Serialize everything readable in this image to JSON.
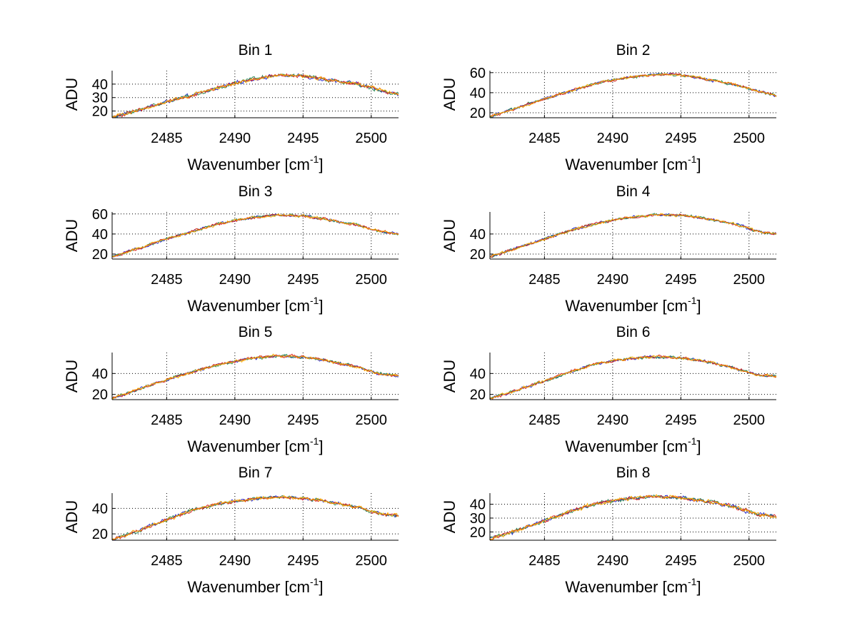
{
  "chart_data": [
    {
      "type": "line",
      "title": "Bin 1",
      "xlabel": "Wavenumber [cm",
      "xlabel_sup": "-1",
      "xlabel_close": "]",
      "ylabel": "ADU",
      "xlim": [
        2481,
        2502
      ],
      "ylim": [
        15,
        50
      ],
      "xticks": [
        2485,
        2490,
        2495,
        2500
      ],
      "yticks": [
        20,
        30,
        40
      ],
      "grid": true,
      "series_colors": [
        "#2b2fd0",
        "#2e8b57",
        "#d62728",
        "#f5a800"
      ],
      "profile": [
        [
          2481,
          15
        ],
        [
          2483,
          21
        ],
        [
          2485,
          27
        ],
        [
          2487,
          32
        ],
        [
          2489,
          38
        ],
        [
          2491,
          43
        ],
        [
          2493,
          46.5
        ],
        [
          2495,
          46
        ],
        [
          2497,
          43
        ],
        [
          2499,
          40
        ],
        [
          2500.5,
          36
        ],
        [
          2502,
          32
        ]
      ]
    },
    {
      "type": "line",
      "title": "Bin 2",
      "xlabel": "Wavenumber [cm",
      "xlabel_sup": "-1",
      "xlabel_close": "]",
      "ylabel": "ADU",
      "xlim": [
        2481,
        2502
      ],
      "ylim": [
        15,
        62
      ],
      "xticks": [
        2485,
        2490,
        2495,
        2500
      ],
      "yticks": [
        20,
        40,
        60
      ],
      "grid": true,
      "series_colors": [
        "#2b2fd0",
        "#2e8b57",
        "#d62728",
        "#f5a800"
      ],
      "profile": [
        [
          2481,
          16
        ],
        [
          2483,
          25
        ],
        [
          2485,
          34
        ],
        [
          2487,
          42
        ],
        [
          2489,
          50
        ],
        [
          2491,
          55
        ],
        [
          2493,
          58
        ],
        [
          2495,
          58
        ],
        [
          2497,
          53
        ],
        [
          2499,
          48
        ],
        [
          2500.5,
          42
        ],
        [
          2502,
          37
        ]
      ]
    },
    {
      "type": "line",
      "title": "Bin 3",
      "xlabel": "Wavenumber [cm",
      "xlabel_sup": "-1",
      "xlabel_close": "]",
      "ylabel": "ADU",
      "xlim": [
        2481,
        2502
      ],
      "ylim": [
        15,
        62
      ],
      "xticks": [
        2485,
        2490,
        2495,
        2500
      ],
      "yticks": [
        20,
        40,
        60
      ],
      "grid": true,
      "series_colors": [
        "#2b2fd0",
        "#2e8b57",
        "#d62728",
        "#f5a800"
      ],
      "profile": [
        [
          2481,
          17
        ],
        [
          2483,
          26
        ],
        [
          2485,
          35
        ],
        [
          2487,
          43
        ],
        [
          2489,
          51
        ],
        [
          2491,
          56
        ],
        [
          2493,
          59
        ],
        [
          2495,
          58
        ],
        [
          2497,
          54
        ],
        [
          2499,
          49
        ],
        [
          2500.5,
          43
        ],
        [
          2502,
          40
        ]
      ]
    },
    {
      "type": "line",
      "title": "Bin 4",
      "xlabel": "Wavenumber [cm",
      "xlabel_sup": "-1",
      "xlabel_close": "]",
      "ylabel": "ADU",
      "xlim": [
        2481,
        2502
      ],
      "ylim": [
        15,
        62
      ],
      "xticks": [
        2485,
        2490,
        2495,
        2500
      ],
      "yticks": [
        20,
        40
      ],
      "grid": true,
      "series_colors": [
        "#2b2fd0",
        "#2e8b57",
        "#d62728",
        "#f5a800"
      ],
      "profile": [
        [
          2481,
          17
        ],
        [
          2483,
          26
        ],
        [
          2485,
          35
        ],
        [
          2487,
          44
        ],
        [
          2489,
          51
        ],
        [
          2491,
          56
        ],
        [
          2493,
          59
        ],
        [
          2495,
          59
        ],
        [
          2497,
          55
        ],
        [
          2499,
          50
        ],
        [
          2500.5,
          43
        ],
        [
          2502,
          40
        ]
      ]
    },
    {
      "type": "line",
      "title": "Bin 5",
      "xlabel": "Wavenumber [cm",
      "xlabel_sup": "-1",
      "xlabel_close": "]",
      "ylabel": "ADU",
      "xlim": [
        2481,
        2502
      ],
      "ylim": [
        15,
        60
      ],
      "xticks": [
        2485,
        2490,
        2495,
        2500
      ],
      "yticks": [
        20,
        40
      ],
      "grid": true,
      "series_colors": [
        "#2b2fd0",
        "#2e8b57",
        "#d62728",
        "#f5a800"
      ],
      "profile": [
        [
          2481,
          16
        ],
        [
          2483,
          25
        ],
        [
          2485,
          34
        ],
        [
          2487,
          42
        ],
        [
          2489,
          49
        ],
        [
          2491,
          54
        ],
        [
          2493,
          57
        ],
        [
          2495,
          56
        ],
        [
          2497,
          52
        ],
        [
          2499,
          46
        ],
        [
          2500.5,
          40
        ],
        [
          2502,
          38
        ]
      ]
    },
    {
      "type": "line",
      "title": "Bin 6",
      "xlabel": "Wavenumber [cm",
      "xlabel_sup": "-1",
      "xlabel_close": "]",
      "ylabel": "ADU",
      "xlim": [
        2481,
        2502
      ],
      "ylim": [
        15,
        60
      ],
      "xticks": [
        2485,
        2490,
        2495,
        2500
      ],
      "yticks": [
        20,
        40
      ],
      "grid": true,
      "series_colors": [
        "#2b2fd0",
        "#2e8b57",
        "#d62728",
        "#f5a800"
      ],
      "profile": [
        [
          2481,
          16
        ],
        [
          2483,
          24
        ],
        [
          2485,
          33
        ],
        [
          2487,
          42
        ],
        [
          2489,
          50
        ],
        [
          2491,
          54
        ],
        [
          2493,
          56
        ],
        [
          2495,
          55
        ],
        [
          2497,
          51
        ],
        [
          2499,
          45
        ],
        [
          2500.5,
          39
        ],
        [
          2502,
          37
        ]
      ]
    },
    {
      "type": "line",
      "title": "Bin 7",
      "xlabel": "Wavenumber [cm",
      "xlabel_sup": "-1",
      "xlabel_close": "]",
      "ylabel": "ADU",
      "xlim": [
        2481,
        2502
      ],
      "ylim": [
        15,
        52
      ],
      "xticks": [
        2485,
        2490,
        2495,
        2500
      ],
      "yticks": [
        20,
        40
      ],
      "grid": true,
      "series_colors": [
        "#2b2fd0",
        "#2e8b57",
        "#d62728",
        "#f5a800"
      ],
      "profile": [
        [
          2481,
          15
        ],
        [
          2483,
          23
        ],
        [
          2485,
          31
        ],
        [
          2487,
          39
        ],
        [
          2489,
          44
        ],
        [
          2491,
          47
        ],
        [
          2493,
          49
        ],
        [
          2495,
          48
        ],
        [
          2497,
          45
        ],
        [
          2499,
          41
        ],
        [
          2500.5,
          36
        ],
        [
          2502,
          34
        ]
      ]
    },
    {
      "type": "line",
      "title": "Bin 8",
      "xlabel": "Wavenumber [cm",
      "xlabel_sup": "-1",
      "xlabel_close": "]",
      "ylabel": "ADU",
      "xlim": [
        2481,
        2502
      ],
      "ylim": [
        14,
        48
      ],
      "xticks": [
        2485,
        2490,
        2495,
        2500
      ],
      "yticks": [
        20,
        30,
        40
      ],
      "grid": true,
      "series_colors": [
        "#2b2fd0",
        "#2e8b57",
        "#d62728",
        "#f5a800"
      ],
      "profile": [
        [
          2481,
          15
        ],
        [
          2483,
          21
        ],
        [
          2485,
          28
        ],
        [
          2487,
          35
        ],
        [
          2489,
          41
        ],
        [
          2491,
          44
        ],
        [
          2493,
          45.5
        ],
        [
          2495,
          45
        ],
        [
          2497,
          42
        ],
        [
          2499,
          38
        ],
        [
          2500.5,
          33
        ],
        [
          2502,
          31
        ]
      ]
    }
  ]
}
